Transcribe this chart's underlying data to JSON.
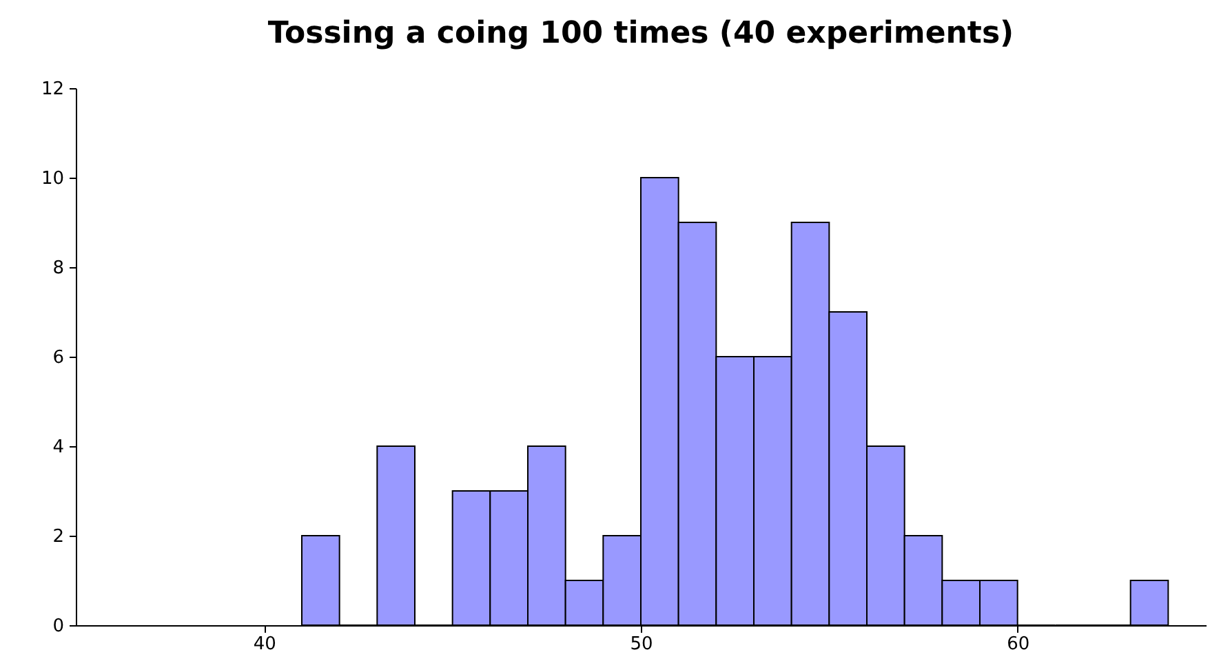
{
  "chart_data": {
    "type": "histogram",
    "title": "Tossing a coing 100 times (40 experiments)",
    "bins": [
      41,
      42,
      43,
      44,
      45,
      46,
      47,
      48,
      49,
      50,
      51,
      52,
      53,
      54,
      55,
      56,
      57,
      58,
      59,
      60,
      61,
      62,
      63,
      64
    ],
    "values": [
      2,
      0,
      4,
      0,
      3,
      3,
      4,
      1,
      2,
      10,
      9,
      6,
      6,
      9,
      7,
      4,
      2,
      1,
      1,
      0,
      0,
      0,
      1
    ],
    "color": "#9999ff",
    "xlim": [
      35,
      65
    ],
    "xticks": [
      40,
      50,
      60
    ],
    "ylim": [
      0,
      12
    ],
    "yticks": [
      0,
      2,
      4,
      6,
      8,
      10,
      12
    ],
    "grid": false,
    "legend": false
  }
}
